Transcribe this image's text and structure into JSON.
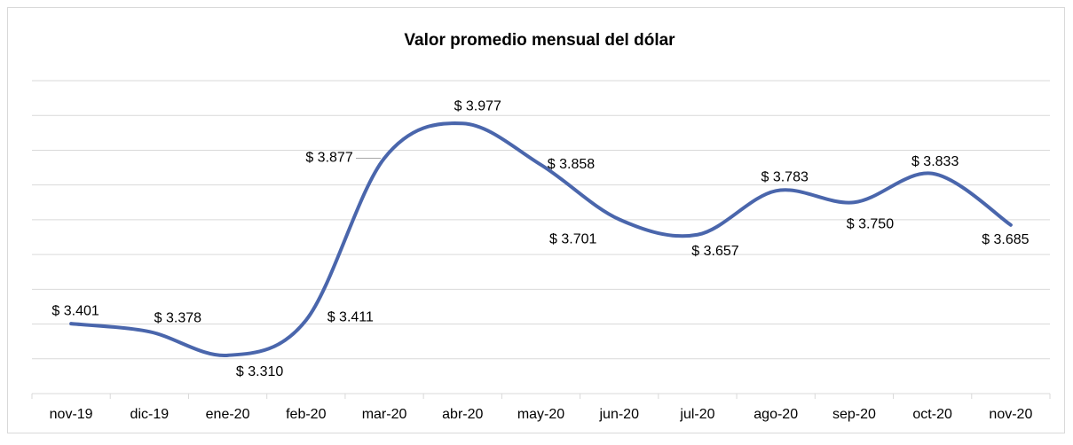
{
  "chart_data": {
    "type": "line",
    "title": "Valor promedio mensual del dólar",
    "categories": [
      "nov-19",
      "dic-19",
      "ene-20",
      "feb-20",
      "mar-20",
      "abr-20",
      "may-20",
      "jun-20",
      "jul-20",
      "ago-20",
      "sep-20",
      "oct-20",
      "nov-20"
    ],
    "series": [
      {
        "name": "Valor promedio mensual del dólar",
        "color": "#4a66ac",
        "values": [
          3401,
          3378,
          3310,
          3411,
          3877,
          3977,
          3858,
          3701,
          3657,
          3783,
          3750,
          3833,
          3685
        ],
        "value_labels": [
          "$ 3.401",
          "$ 3.378",
          "$ 3.310",
          "$ 3.411",
          "$ 3.877",
          "$ 3.977",
          "$ 3.858",
          "$ 3.701",
          "$ 3.657",
          "$ 3.783",
          "$ 3.750",
          "$ 3.833",
          "$ 3.685"
        ]
      }
    ],
    "ylim": [
      3200,
      4100
    ],
    "yticks": [
      3200,
      3300,
      3400,
      3500,
      3600,
      3700,
      3800,
      3900,
      4000,
      4100
    ],
    "grid": true
  }
}
